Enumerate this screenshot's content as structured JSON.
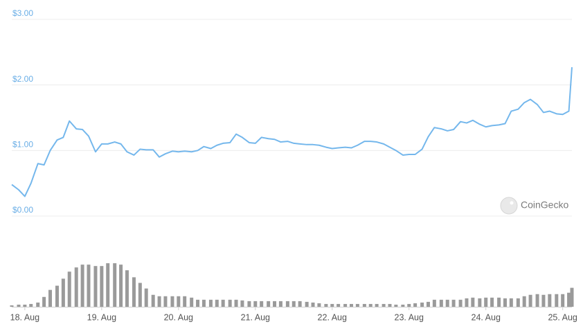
{
  "chart_data": {
    "type": "line",
    "x": [
      17.83,
      17.92,
      18,
      18.08,
      18.17,
      18.25,
      18.33,
      18.42,
      18.5,
      18.58,
      18.67,
      18.75,
      18.83,
      18.92,
      19,
      19.08,
      19.17,
      19.25,
      19.33,
      19.42,
      19.5,
      19.58,
      19.67,
      19.75,
      19.83,
      19.92,
      20,
      20.08,
      20.17,
      20.25,
      20.33,
      20.42,
      20.5,
      20.58,
      20.67,
      20.75,
      20.83,
      20.92,
      21,
      21.08,
      21.17,
      21.25,
      21.33,
      21.42,
      21.5,
      21.58,
      21.67,
      21.75,
      21.83,
      21.92,
      22,
      22.08,
      22.17,
      22.25,
      22.33,
      22.42,
      22.5,
      22.58,
      22.67,
      22.75,
      22.83,
      22.92,
      23,
      23.08,
      23.17,
      23.25,
      23.33,
      23.42,
      23.5,
      23.58,
      23.67,
      23.75,
      23.83,
      23.92,
      24,
      24.08,
      24.17,
      24.25,
      24.33,
      24.42,
      24.5,
      24.58,
      24.67,
      24.75,
      24.83,
      24.92,
      25,
      25.08,
      25.12
    ],
    "series": [
      {
        "color": "#74b7ec",
        "values": [
          0.48,
          0.4,
          0.3,
          0.5,
          0.8,
          0.78,
          1.0,
          1.16,
          1.2,
          1.45,
          1.33,
          1.32,
          1.22,
          0.98,
          1.1,
          1.1,
          1.13,
          1.1,
          0.98,
          0.93,
          1.02,
          1.01,
          1.01,
          0.9,
          0.95,
          0.99,
          0.98,
          0.99,
          0.98,
          1.0,
          1.06,
          1.03,
          1.08,
          1.11,
          1.12,
          1.25,
          1.2,
          1.12,
          1.11,
          1.2,
          1.18,
          1.17,
          1.13,
          1.14,
          1.11,
          1.1,
          1.09,
          1.09,
          1.08,
          1.05,
          1.03,
          1.04,
          1.05,
          1.04,
          1.08,
          1.14,
          1.14,
          1.13,
          1.1,
          1.05,
          1.0,
          0.93,
          0.94,
          0.94,
          1.02,
          1.21,
          1.35,
          1.33,
          1.3,
          1.32,
          1.44,
          1.42,
          1.46,
          1.4,
          1.36,
          1.38,
          1.39,
          1.41,
          1.6,
          1.63,
          1.73,
          1.78,
          1.7,
          1.58,
          1.6,
          1.56,
          1.55,
          1.6,
          2.27
        ]
      },
      {
        "color": "#9a9a9a",
        "axis": "y2",
        "type": "bar",
        "values": [
          2,
          3,
          3,
          4,
          6,
          14,
          24,
          30,
          40,
          50,
          56,
          60,
          60,
          58,
          58,
          62,
          62,
          60,
          52,
          42,
          34,
          26,
          17,
          15,
          15,
          15,
          15,
          15,
          13,
          10,
          10,
          10,
          10,
          10,
          10,
          10,
          9,
          8,
          8,
          8,
          8,
          8,
          8,
          8,
          8,
          8,
          7,
          6,
          5,
          4,
          4,
          4,
          4,
          4,
          4,
          4,
          4,
          4,
          4,
          4,
          3,
          3,
          4,
          5,
          6,
          7,
          10,
          10,
          10,
          10,
          10,
          12,
          13,
          12,
          13,
          13,
          13,
          12,
          12,
          12,
          15,
          17,
          18,
          17,
          18,
          18,
          18,
          20,
          27
        ]
      }
    ],
    "xlim": [
      17.83,
      25.12
    ],
    "xticks": [
      {
        "value": 18,
        "label": "18. Aug"
      },
      {
        "value": 19,
        "label": "19. Aug"
      },
      {
        "value": 20,
        "label": "20. Aug"
      },
      {
        "value": 21,
        "label": "21. Aug"
      },
      {
        "value": 22,
        "label": "22. Aug"
      },
      {
        "value": 23,
        "label": "23. Aug"
      },
      {
        "value": 24,
        "label": "24. Aug"
      },
      {
        "value": 25,
        "label": "25. Aug"
      }
    ],
    "ylim": [
      0,
      3
    ],
    "yticks": [
      {
        "value": 0,
        "label": "$0.00"
      },
      {
        "value": 1,
        "label": "$1.00"
      },
      {
        "value": 2,
        "label": "$2.00"
      },
      {
        "value": 3,
        "label": "$3.00"
      }
    ],
    "y2lim": [
      0,
      70
    ],
    "grid": true,
    "watermark": "CoinGecko"
  }
}
